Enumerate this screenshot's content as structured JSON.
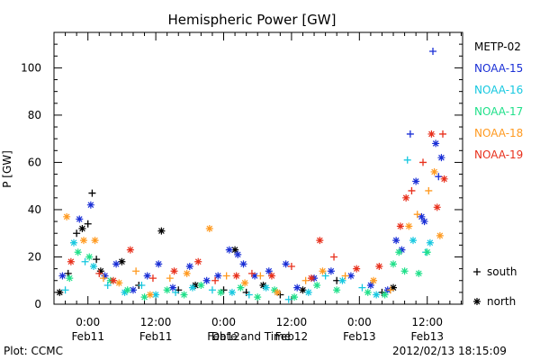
{
  "footer": {
    "left": "Plot: CCMC",
    "right": "2012/02/13  18:15:09"
  },
  "chart_data": {
    "type": "scatter",
    "title": "Hemispheric Power [GW]",
    "xlabel": "Date and Time",
    "ylabel": "P [GW]",
    "xlim": [
      "2012-02-10T18:00",
      "2012-02-13T18:15"
    ],
    "ylim": [
      0,
      115
    ],
    "yticks": [
      0,
      20,
      40,
      60,
      80,
      100
    ],
    "xticks": [
      {
        "time": "2012-02-11T00:00",
        "line1": "0:00",
        "line2": "Feb11"
      },
      {
        "time": "2012-02-11T12:00",
        "line1": "12:00",
        "line2": "Feb11"
      },
      {
        "time": "2012-02-12T00:00",
        "line1": "0:00",
        "line2": "Feb12"
      },
      {
        "time": "2012-02-12T12:00",
        "line1": "12:00",
        "line2": "Feb12"
      },
      {
        "time": "2012-02-13T00:00",
        "line1": "0:00",
        "line2": "Feb13"
      },
      {
        "time": "2012-02-13T12:00",
        "line1": "12:00",
        "line2": "Feb13"
      }
    ],
    "legend_position": "right",
    "marker_legend": [
      {
        "symbol": "+",
        "label": "south"
      },
      {
        "symbol": "*",
        "label": "north"
      }
    ],
    "series": [
      {
        "name": "METP-02",
        "color": "#000000",
        "points": [
          [
            "2012-02-10T19:00",
            5,
            "*"
          ],
          [
            "2012-02-10T20:30",
            13,
            "+"
          ],
          [
            "2012-02-10T22:00",
            30,
            "+"
          ],
          [
            "2012-02-10T23:00",
            32,
            "*"
          ],
          [
            "2012-02-11T00:00",
            34,
            "+"
          ],
          [
            "2012-02-11T00:45",
            47,
            "+"
          ],
          [
            "2012-02-11T01:30",
            19,
            "+"
          ],
          [
            "2012-02-11T02:15",
            14,
            "*"
          ],
          [
            "2012-02-11T06:00",
            18,
            "*"
          ],
          [
            "2012-02-11T09:00",
            8,
            "+"
          ],
          [
            "2012-02-11T13:00",
            31,
            "*"
          ],
          [
            "2012-02-11T16:00",
            6,
            "+"
          ],
          [
            "2012-02-11T19:00",
            8,
            "*"
          ],
          [
            "2012-02-12T00:00",
            6,
            "+"
          ],
          [
            "2012-02-12T02:00",
            23,
            "*"
          ],
          [
            "2012-02-12T04:00",
            5,
            "+"
          ],
          [
            "2012-02-12T07:00",
            8,
            "*"
          ],
          [
            "2012-02-12T10:00",
            4,
            "+"
          ],
          [
            "2012-02-12T14:00",
            6,
            "*"
          ],
          [
            "2012-02-12T20:00",
            10,
            "+"
          ],
          [
            "2012-02-13T04:00",
            5,
            "+"
          ],
          [
            "2012-02-13T06:00",
            7,
            "*"
          ]
        ]
      },
      {
        "name": "NOAA-15",
        "color": "#1a2fd6",
        "points": [
          [
            "2012-02-10T19:30",
            12,
            "*"
          ],
          [
            "2012-02-10T22:30",
            36,
            "*"
          ],
          [
            "2012-02-11T00:30",
            42,
            "*"
          ],
          [
            "2012-02-11T03:00",
            12,
            "*"
          ],
          [
            "2012-02-11T05:00",
            17,
            "*"
          ],
          [
            "2012-02-11T08:00",
            6,
            "*"
          ],
          [
            "2012-02-11T10:30",
            12,
            "*"
          ],
          [
            "2012-02-11T12:30",
            17,
            "*"
          ],
          [
            "2012-02-11T15:00",
            7,
            "*"
          ],
          [
            "2012-02-11T18:00",
            16,
            "*"
          ],
          [
            "2012-02-11T21:00",
            10,
            "*"
          ],
          [
            "2012-02-11T23:00",
            12,
            "*"
          ],
          [
            "2012-02-12T01:00",
            23,
            "*"
          ],
          [
            "2012-02-12T02:30",
            21,
            "*"
          ],
          [
            "2012-02-12T03:30",
            17,
            "*"
          ],
          [
            "2012-02-12T05:30",
            12,
            "*"
          ],
          [
            "2012-02-12T08:00",
            14,
            "*"
          ],
          [
            "2012-02-12T11:00",
            17,
            "*"
          ],
          [
            "2012-02-12T13:00",
            7,
            "*"
          ],
          [
            "2012-02-12T16:00",
            11,
            "*"
          ],
          [
            "2012-02-12T19:00",
            14,
            "*"
          ],
          [
            "2012-02-12T22:30",
            12,
            "*"
          ],
          [
            "2012-02-13T02:00",
            8,
            "*"
          ],
          [
            "2012-02-13T05:00",
            6,
            "*"
          ],
          [
            "2012-02-13T06:30",
            27,
            "*"
          ],
          [
            "2012-02-13T07:30",
            23,
            "*"
          ],
          [
            "2012-02-13T09:00",
            72,
            "+"
          ],
          [
            "2012-02-13T10:00",
            52,
            "*"
          ],
          [
            "2012-02-13T11:00",
            37,
            "*"
          ],
          [
            "2012-02-13T11:30",
            35,
            "*"
          ],
          [
            "2012-02-13T13:00",
            107,
            "+"
          ],
          [
            "2012-02-13T13:30",
            68,
            "*"
          ],
          [
            "2012-02-13T14:30",
            62,
            "*"
          ],
          [
            "2012-02-13T14:00",
            54,
            "+"
          ]
        ]
      },
      {
        "name": "NOAA-16",
        "color": "#16c8e0",
        "points": [
          [
            "2012-02-10T20:00",
            6,
            "+"
          ],
          [
            "2012-02-10T21:30",
            26,
            "*"
          ],
          [
            "2012-02-10T23:30",
            18,
            "+"
          ],
          [
            "2012-02-11T01:00",
            16,
            "*"
          ],
          [
            "2012-02-11T03:30",
            8,
            "+"
          ],
          [
            "2012-02-11T06:30",
            5,
            "*"
          ],
          [
            "2012-02-11T09:30",
            8,
            "+"
          ],
          [
            "2012-02-11T12:00",
            4,
            "*"
          ],
          [
            "2012-02-11T15:30",
            5,
            "+"
          ],
          [
            "2012-02-11T18:30",
            7,
            "*"
          ],
          [
            "2012-02-11T22:00",
            6,
            "+"
          ],
          [
            "2012-02-12T01:30",
            5,
            "*"
          ],
          [
            "2012-02-12T04:30",
            4,
            "+"
          ],
          [
            "2012-02-12T07:30",
            7,
            "*"
          ],
          [
            "2012-02-12T11:30",
            2,
            "+"
          ],
          [
            "2012-02-12T15:00",
            5,
            "*"
          ],
          [
            "2012-02-12T18:00",
            12,
            "+"
          ],
          [
            "2012-02-12T21:00",
            10,
            "*"
          ],
          [
            "2012-02-13T00:30",
            7,
            "+"
          ],
          [
            "2012-02-13T03:00",
            4,
            "*"
          ],
          [
            "2012-02-13T08:30",
            61,
            "+"
          ],
          [
            "2012-02-13T09:30",
            27,
            "*"
          ],
          [
            "2012-02-13T12:30",
            26,
            "*"
          ],
          [
            "2012-02-13T11:45",
            22,
            "+"
          ]
        ]
      },
      {
        "name": "NOAA-17",
        "color": "#20e08a",
        "points": [
          [
            "2012-02-10T20:45",
            11,
            "*"
          ],
          [
            "2012-02-10T22:15",
            22,
            "*"
          ],
          [
            "2012-02-11T00:15",
            20,
            "*"
          ],
          [
            "2012-02-11T04:00",
            10,
            "*"
          ],
          [
            "2012-02-11T07:00",
            6,
            "*"
          ],
          [
            "2012-02-11T10:00",
            3,
            "*"
          ],
          [
            "2012-02-11T14:00",
            6,
            "*"
          ],
          [
            "2012-02-11T17:00",
            4,
            "*"
          ],
          [
            "2012-02-11T20:00",
            8,
            "*"
          ],
          [
            "2012-02-11T23:30",
            5,
            "*"
          ],
          [
            "2012-02-12T03:00",
            7,
            "*"
          ],
          [
            "2012-02-12T06:00",
            3,
            "*"
          ],
          [
            "2012-02-12T09:00",
            6,
            "*"
          ],
          [
            "2012-02-12T12:30",
            3,
            "*"
          ],
          [
            "2012-02-12T16:30",
            8,
            "*"
          ],
          [
            "2012-02-12T20:00",
            6,
            "*"
          ],
          [
            "2012-02-13T01:30",
            5,
            "*"
          ],
          [
            "2012-02-13T04:30",
            4,
            "*"
          ],
          [
            "2012-02-13T06:00",
            17,
            "*"
          ],
          [
            "2012-02-13T07:00",
            22,
            "*"
          ],
          [
            "2012-02-13T08:00",
            14,
            "*"
          ],
          [
            "2012-02-13T10:30",
            13,
            "*"
          ],
          [
            "2012-02-13T12:00",
            22,
            "*"
          ]
        ]
      },
      {
        "name": "NOAA-18",
        "color": "#ff9a20",
        "points": [
          [
            "2012-02-10T20:15",
            37,
            "*"
          ],
          [
            "2012-02-10T23:15",
            27,
            "*"
          ],
          [
            "2012-02-11T01:15",
            27,
            "*"
          ],
          [
            "2012-02-11T02:45",
            11,
            "+"
          ],
          [
            "2012-02-11T05:30",
            9,
            "*"
          ],
          [
            "2012-02-11T08:30",
            14,
            "+"
          ],
          [
            "2012-02-11T11:00",
            4,
            "*"
          ],
          [
            "2012-02-11T14:30",
            11,
            "+"
          ],
          [
            "2012-02-11T17:30",
            13,
            "*"
          ],
          [
            "2012-02-11T21:30",
            32,
            "*"
          ],
          [
            "2012-02-12T00:30",
            12,
            "+"
          ],
          [
            "2012-02-12T03:45",
            9,
            "*"
          ],
          [
            "2012-02-12T06:30",
            12,
            "+"
          ],
          [
            "2012-02-12T09:30",
            5,
            "*"
          ],
          [
            "2012-02-12T14:30",
            10,
            "+"
          ],
          [
            "2012-02-12T17:30",
            14,
            "*"
          ],
          [
            "2012-02-12T21:30",
            12,
            "+"
          ],
          [
            "2012-02-13T02:30",
            10,
            "*"
          ],
          [
            "2012-02-13T05:30",
            6,
            "+"
          ],
          [
            "2012-02-13T08:45",
            33,
            "*"
          ],
          [
            "2012-02-13T10:15",
            38,
            "+"
          ],
          [
            "2012-02-13T12:15",
            48,
            "+"
          ],
          [
            "2012-02-13T13:15",
            56,
            "*"
          ],
          [
            "2012-02-13T14:15",
            29,
            "*"
          ]
        ]
      },
      {
        "name": "NOAA-19",
        "color": "#e8301c",
        "points": [
          [
            "2012-02-10T21:00",
            18,
            "*"
          ],
          [
            "2012-02-11T02:00",
            13,
            "+"
          ],
          [
            "2012-02-11T04:30",
            10,
            "*"
          ],
          [
            "2012-02-11T07:30",
            23,
            "*"
          ],
          [
            "2012-02-11T11:30",
            11,
            "+"
          ],
          [
            "2012-02-11T15:15",
            14,
            "*"
          ],
          [
            "2012-02-11T19:30",
            18,
            "*"
          ],
          [
            "2012-02-11T22:30",
            10,
            "+"
          ],
          [
            "2012-02-12T02:15",
            12,
            "*"
          ],
          [
            "2012-02-12T05:00",
            13,
            "+"
          ],
          [
            "2012-02-12T08:30",
            12,
            "*"
          ],
          [
            "2012-02-12T12:00",
            16,
            "+"
          ],
          [
            "2012-02-12T15:30",
            11,
            "*"
          ],
          [
            "2012-02-12T17:00",
            27,
            "*"
          ],
          [
            "2012-02-12T19:30",
            20,
            "+"
          ],
          [
            "2012-02-12T23:30",
            15,
            "*"
          ],
          [
            "2012-02-13T03:30",
            16,
            "*"
          ],
          [
            "2012-02-13T07:15",
            33,
            "*"
          ],
          [
            "2012-02-13T08:15",
            45,
            "*"
          ],
          [
            "2012-02-13T09:15",
            48,
            "+"
          ],
          [
            "2012-02-13T11:15",
            60,
            "+"
          ],
          [
            "2012-02-13T12:45",
            72,
            "*"
          ],
          [
            "2012-02-13T13:45",
            41,
            "*"
          ],
          [
            "2012-02-13T14:45",
            72,
            "+"
          ],
          [
            "2012-02-13T15:00",
            53,
            "*"
          ]
        ]
      }
    ]
  }
}
